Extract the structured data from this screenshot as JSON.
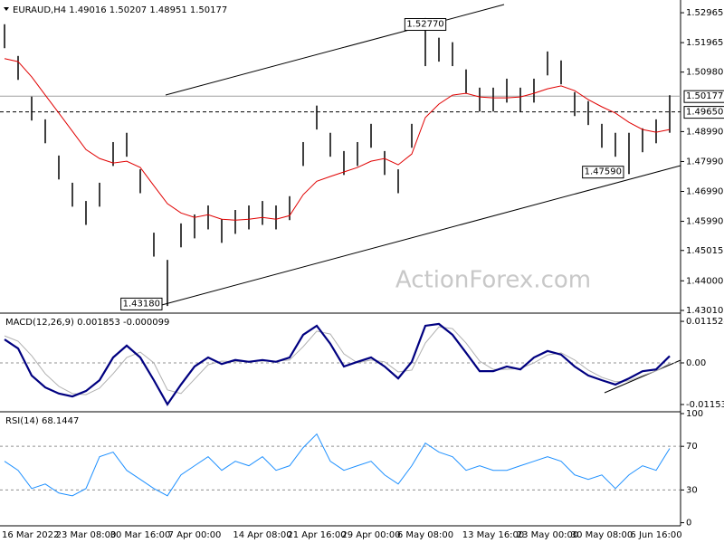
{
  "watermark": "ActionForex.com",
  "chart_data": [
    {
      "type": "range",
      "title": "EURAUD,H4  1.49016 1.50207 1.48951 1.50177",
      "color": "#000000",
      "high": [
        1.5258,
        1.5152,
        1.5016,
        1.494,
        1.4819,
        1.4728,
        1.4667,
        1.4728,
        1.4864,
        1.4895,
        1.4773,
        1.4561,
        1.447,
        1.4592,
        1.4622,
        1.4652,
        1.4607,
        1.4637,
        1.4652,
        1.4667,
        1.4652,
        1.4683,
        1.4864,
        1.4986,
        1.4895,
        1.4834,
        1.4864,
        1.4925,
        1.4834,
        1.4773,
        1.4925,
        1.5277,
        1.5213,
        1.5198,
        1.5107,
        1.5046,
        1.5046,
        1.5076,
        1.5046,
        1.5076,
        1.5167,
        1.5137,
        1.5031,
        1.5001,
        1.4925,
        1.4895,
        1.4895,
        1.491,
        1.494,
        1.50207
      ],
      "low": [
        1.5178,
        1.5072,
        1.4936,
        1.486,
        1.4739,
        1.4648,
        1.4587,
        1.4648,
        1.4784,
        1.4815,
        1.4693,
        1.4481,
        1.4318,
        1.4512,
        1.4542,
        1.4572,
        1.4527,
        1.4557,
        1.4572,
        1.4587,
        1.4572,
        1.4603,
        1.4784,
        1.4906,
        1.4815,
        1.4754,
        1.4784,
        1.4845,
        1.4754,
        1.4693,
        1.4845,
        1.5118,
        1.5133,
        1.5118,
        1.5027,
        1.4966,
        1.4966,
        1.4996,
        1.4966,
        1.4996,
        1.5087,
        1.5057,
        1.4951,
        1.4921,
        1.4845,
        1.4815,
        1.4759,
        1.483,
        1.486,
        1.48951
      ],
      "overlay": {
        "color": "#e00000",
        "values": [
          1.5143,
          1.5133,
          1.5082,
          1.5021,
          1.4961,
          1.49,
          1.4839,
          1.4809,
          1.4794,
          1.48,
          1.4779,
          1.4718,
          1.4658,
          1.4627,
          1.4612,
          1.4621,
          1.4606,
          1.4603,
          1.4606,
          1.4612,
          1.4606,
          1.4618,
          1.4688,
          1.4733,
          1.4749,
          1.4764,
          1.4779,
          1.48,
          1.4809,
          1.4788,
          1.4824,
          1.4946,
          1.4991,
          1.5021,
          1.5027,
          1.5015,
          1.5012,
          1.5012,
          1.5015,
          1.5027,
          1.5042,
          1.5052,
          1.5036,
          1.5006,
          1.4982,
          1.4961,
          1.493,
          1.4906,
          1.4897,
          1.4906
        ]
      },
      "ylim": [
        1.4295,
        1.533
      ],
      "yticks": [
        1.52965,
        1.51965,
        {
          "value": 1.5098,
          "label": "1.50980"
        },
        {
          "value": 1.4899,
          "label": "1.48990"
        },
        {
          "value": 1.4799,
          "label": "1.47990"
        },
        {
          "value": 1.4699,
          "label": "1.46990"
        },
        {
          "value": 1.4599,
          "label": "1.45990"
        },
        1.45015,
        {
          "value": 1.44,
          "label": "1.44000"
        },
        {
          "value": 1.4301,
          "label": "1.43010"
        }
      ],
      "annotations": [
        {
          "value": 1.5277,
          "label": "1.52770"
        },
        {
          "value": 1.4318,
          "label": "1.43180"
        },
        {
          "value": 1.4759,
          "label": "1.47590"
        }
      ],
      "price_levels": [
        {
          "value": 1.50177,
          "label": "1.50177",
          "style": "solid"
        },
        {
          "value": 1.4965,
          "label": "1.49650",
          "style": "dashed"
        }
      ]
    },
    {
      "type": "line",
      "title": "MACD(12,26,9) 0.001853 -0.000099",
      "series": [
        {
          "color": "#000080",
          "values": [
            0.0065,
            0.004,
            -0.0035,
            -0.0068,
            -0.0085,
            -0.0093,
            -0.0078,
            -0.0048,
            0.0015,
            0.0048,
            0.0015,
            -0.0048,
            -0.0115,
            -0.006,
            -0.001,
            0.0015,
            -0.0003,
            0.0008,
            0.0003,
            0.0008,
            0.0003,
            0.0015,
            0.0078,
            0.0103,
            0.0053,
            -0.001,
            0.0003,
            0.0015,
            -0.001,
            -0.0043,
            0.0003,
            0.0103,
            0.0108,
            0.0078,
            0.0028,
            -0.0023,
            -0.0023,
            -0.001,
            -0.0018,
            0.0015,
            0.0033,
            0.0023,
            -0.001,
            -0.0035,
            -0.0048,
            -0.006,
            -0.0043,
            -0.0023,
            -0.0018,
            0.0019
          ]
        },
        {
          "color": "#b0b0b0",
          "values": [
            0.0075,
            0.006,
            0.002,
            -0.003,
            -0.0065,
            -0.0085,
            -0.0088,
            -0.007,
            -0.003,
            0.0015,
            0.003,
            0.0,
            -0.0075,
            -0.0085,
            -0.0045,
            -0.0005,
            0.0005,
            0.0003,
            0.0005,
            0.0005,
            0.0005,
            0.0008,
            0.0045,
            0.0088,
            0.008,
            0.0025,
            0.0,
            0.0008,
            0.0003,
            -0.0025,
            -0.002,
            0.0055,
            0.01,
            0.0095,
            0.0055,
            0.0005,
            -0.0018,
            -0.0018,
            -0.0015,
            0.0,
            0.0022,
            0.0028,
            0.0008,
            -0.002,
            -0.004,
            -0.0052,
            -0.005,
            -0.0035,
            -0.0022,
            -0.0001
          ]
        }
      ],
      "ylim": [
        -0.0128,
        0.0133
      ],
      "yticks": [
        0.011524,
        {
          "value": 0,
          "label": "0.00"
        },
        -0.011537
      ],
      "levels": [
        0
      ]
    },
    {
      "type": "line",
      "title": "RSI(14) 68.1447",
      "categories": [
        "16 Mar 2022",
        null,
        null,
        null,
        null,
        null,
        "23 Mar 08:00",
        null,
        null,
        null,
        "30 Mar 16:00",
        null,
        null,
        null,
        "7 Apr 00:00",
        null,
        null,
        null,
        null,
        "14 Apr 08:00",
        null,
        null,
        null,
        "21 Apr 16:00",
        null,
        null,
        null,
        "29 Apr 00:00",
        null,
        null,
        null,
        "6 May 08:00",
        null,
        null,
        null,
        null,
        "13 May 16:00",
        null,
        null,
        null,
        "23 May 00:00",
        null,
        null,
        null,
        "30 May 08:00",
        null,
        null,
        null,
        "6 Jun 16:00",
        null
      ],
      "series": [
        {
          "color": "#1e90ff",
          "values": [
            56.3,
            48,
            31.3,
            35.5,
            27.2,
            24.7,
            31.3,
            60.5,
            64.7,
            48,
            39.7,
            31.3,
            24.7,
            43.8,
            52.2,
            60.5,
            48,
            56.3,
            52.2,
            60.5,
            48,
            52.2,
            68.8,
            81.3,
            56.3,
            48,
            52.2,
            56.3,
            43.8,
            35.5,
            52.2,
            73,
            64.7,
            60.5,
            48,
            52.2,
            48,
            48,
            52.2,
            56.3,
            60.5,
            56.3,
            43.8,
            39.7,
            43.8,
            31.3,
            43.8,
            52.2,
            48,
            68.1
          ]
        }
      ],
      "ylim": [
        -2,
        100
      ],
      "yticks": [
        100,
        70,
        30,
        0
      ],
      "levels": [
        70,
        30
      ]
    }
  ]
}
